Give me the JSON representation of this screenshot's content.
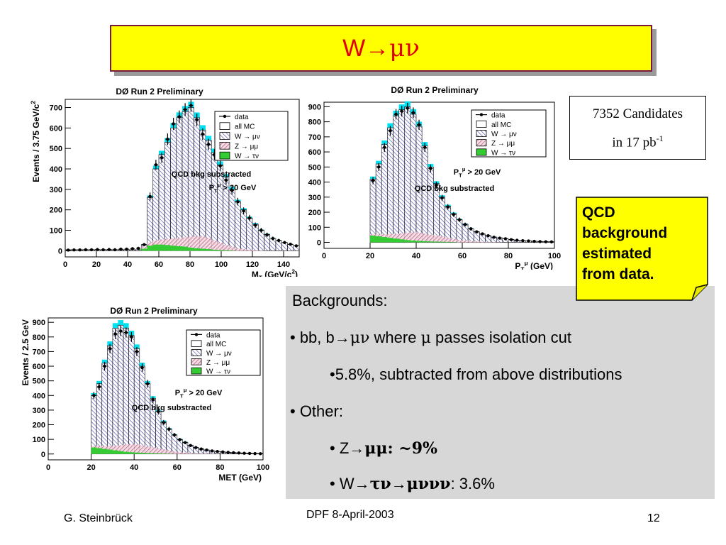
{
  "slide": {
    "title_main": "W",
    "title_arrow": "→",
    "title_greek": "μν",
    "candidates_line1": "7352 Candidates",
    "candidates_line2": "in 17 pb",
    "candidates_sup": "-1",
    "qcd_note": [
      "QCD",
      "background",
      "estimated",
      "from data."
    ],
    "backgrounds": {
      "heading": "Backgrounds:",
      "line1": {
        "bullet": "•",
        "pre": " bb, b",
        "arrow": "→",
        "greek": "μν",
        "mid": " where ",
        "mu": "μ",
        "post": " passes isolation cut"
      },
      "line2": "•5.8%, subtracted from above distributions",
      "line3": "• Other:",
      "line4": {
        "pre": "• Z",
        "arrow": "→",
        "greek": "μμ",
        "post": ": ~9%"
      },
      "line5": {
        "pre": "• W",
        "arrow1": "→",
        "greek1": "τν",
        "arrow2": "→",
        "greek2": "μννν",
        "post": ": 3.6%"
      }
    },
    "footer": {
      "author": "G. Steinbrück",
      "event": "DPF 8-April-2003",
      "page": "12"
    },
    "colors": {
      "title_bg": "#ffff00",
      "title_text": "#e00000",
      "panel_bg": "#d7d7d7",
      "note_bg": "#ffff00",
      "cyan": "#00e0f0",
      "green": "#33cc33",
      "hatch_blue": "#5a5ab0",
      "hatch_pink": "#b05a7a"
    }
  },
  "chart_data": [
    {
      "type": "bar",
      "id": "mt",
      "title": "DØ Run 2 Preliminary",
      "xlabel": "M_T (GeV/c^2)",
      "ylabel": "Events / 3.75 GeV/c^2",
      "xlim": [
        0,
        150
      ],
      "ylim": [
        -30,
        740
      ],
      "xticks": [
        0,
        20,
        40,
        60,
        80,
        100,
        120,
        140
      ],
      "yticks": [
        0,
        100,
        200,
        300,
        400,
        500,
        600,
        700
      ],
      "annotations": [
        "QCD bkg substracted",
        "P_T^μ > 20 GeV"
      ],
      "legend": [
        "data",
        "all MC",
        "W → μν",
        "Z → μμ",
        "W → τν"
      ],
      "bin_start": 0,
      "bin_width": 3.75,
      "mc": [
        5,
        5,
        5,
        5,
        5,
        5,
        5,
        5,
        5,
        5,
        5,
        5,
        5,
        30,
        260,
        400,
        470,
        530,
        600,
        650,
        680,
        700,
        650,
        590,
        540,
        480,
        420,
        360,
        300,
        240,
        200,
        160,
        130,
        100,
        80,
        60,
        50,
        40,
        30,
        25
      ],
      "data_vals": [
        3,
        4,
        4,
        5,
        5,
        6,
        5,
        6,
        5,
        8,
        8,
        10,
        12,
        30,
        265,
        420,
        455,
        545,
        620,
        655,
        690,
        710,
        640,
        570,
        520,
        470,
        415,
        345,
        295,
        240,
        195,
        160,
        125,
        100,
        78,
        60,
        50,
        40,
        32,
        24
      ],
      "wtaunu": [
        0,
        0,
        0,
        0,
        0,
        0,
        0,
        0,
        0,
        0,
        0,
        0,
        0,
        10,
        25,
        30,
        30,
        28,
        25,
        22,
        20,
        15,
        12,
        10,
        8,
        5,
        4,
        3,
        2,
        0,
        0,
        0,
        0,
        0,
        0,
        0,
        0,
        0,
        0,
        0
      ],
      "zmumu": [
        0,
        0,
        0,
        0,
        0,
        0,
        0,
        0,
        0,
        0,
        0,
        0,
        0,
        10,
        15,
        20,
        25,
        30,
        35,
        40,
        45,
        55,
        60,
        60,
        55,
        45,
        35,
        25,
        18,
        12,
        8,
        5,
        3,
        2,
        0,
        0,
        0,
        0,
        0,
        0
      ]
    },
    {
      "type": "bar",
      "id": "pt",
      "title": "DØ Run 2 Preliminary",
      "xlabel": "P_T^μ (GeV)",
      "ylabel": "",
      "xlim": [
        0,
        100
      ],
      "ylim": [
        -40,
        930
      ],
      "xticks": [
        0,
        20,
        40,
        60,
        80,
        100
      ],
      "yticks": [
        0,
        100,
        200,
        300,
        400,
        500,
        600,
        700,
        800,
        900
      ],
      "annotations": [
        "P_T^μ > 20 GeV",
        "QCD bkg substracted"
      ],
      "legend": [
        "data",
        "all MC",
        "W → μν",
        "Z → μμ",
        "W → τν"
      ],
      "bin_start": 20,
      "bin_width": 2.5,
      "mc": [
        420,
        520,
        650,
        760,
        840,
        880,
        900,
        850,
        770,
        640,
        500,
        390,
        300,
        240,
        190,
        150,
        120,
        90,
        70,
        55,
        45,
        35,
        30,
        25,
        20,
        15,
        12,
        10,
        8,
        6,
        5,
        4
      ],
      "data_vals": [
        410,
        500,
        630,
        740,
        850,
        870,
        890,
        860,
        780,
        630,
        490,
        380,
        295,
        235,
        185,
        150,
        118,
        90,
        70,
        56,
        44,
        34,
        28,
        24,
        18,
        14,
        11,
        9,
        7,
        5,
        4,
        3
      ],
      "wtaunu": [
        45,
        40,
        35,
        30,
        25,
        20,
        15,
        12,
        10,
        8,
        6,
        5,
        4,
        3,
        2,
        0,
        0,
        0,
        0,
        0,
        0,
        0,
        0,
        0,
        0,
        0,
        0,
        0,
        0,
        0,
        0,
        0
      ],
      "zmumu": [
        10,
        15,
        20,
        25,
        30,
        40,
        50,
        55,
        55,
        50,
        45,
        40,
        35,
        28,
        22,
        16,
        12,
        9,
        6,
        4,
        3,
        2,
        1,
        0,
        0,
        0,
        0,
        0,
        0,
        0,
        0,
        0
      ]
    },
    {
      "type": "bar",
      "id": "met",
      "title": "DØ Run 2 Preliminary",
      "xlabel": "MET (GeV)",
      "ylabel": "Events / 2.5 GeV",
      "xlim": [
        0,
        100
      ],
      "ylim": [
        -40,
        930
      ],
      "xticks": [
        0,
        20,
        40,
        60,
        80,
        100
      ],
      "yticks": [
        0,
        100,
        200,
        300,
        400,
        500,
        600,
        700,
        800,
        900
      ],
      "annotations": [
        "P_T^μ > 20 GeV",
        "QCD bkg substracted"
      ],
      "legend": [
        "data",
        "all MC",
        "W → μν",
        "Z → μμ",
        "W → τν"
      ],
      "bin_start": 20,
      "bin_width": 2.5,
      "mc": [
        400,
        480,
        620,
        740,
        860,
        880,
        860,
        810,
        720,
        600,
        480,
        380,
        290,
        220,
        170,
        130,
        100,
        80,
        60,
        45,
        35,
        28,
        22,
        18,
        15,
        12,
        10,
        8,
        6,
        5,
        4,
        3
      ],
      "data_vals": [
        400,
        460,
        600,
        720,
        820,
        840,
        830,
        800,
        700,
        590,
        480,
        370,
        290,
        215,
        170,
        130,
        98,
        78,
        58,
        44,
        34,
        27,
        21,
        17,
        14,
        11,
        9,
        7,
        5,
        4,
        3,
        2
      ],
      "wtaunu": [
        45,
        40,
        35,
        30,
        25,
        20,
        15,
        12,
        10,
        8,
        6,
        5,
        4,
        3,
        2,
        0,
        0,
        0,
        0,
        0,
        0,
        0,
        0,
        0,
        0,
        0,
        0,
        0,
        0,
        0,
        0,
        0
      ],
      "zmumu": [
        10,
        15,
        20,
        25,
        30,
        40,
        50,
        55,
        55,
        50,
        45,
        40,
        35,
        28,
        22,
        16,
        12,
        9,
        6,
        4,
        3,
        2,
        1,
        0,
        0,
        0,
        0,
        0,
        0,
        0,
        0,
        0
      ]
    }
  ]
}
